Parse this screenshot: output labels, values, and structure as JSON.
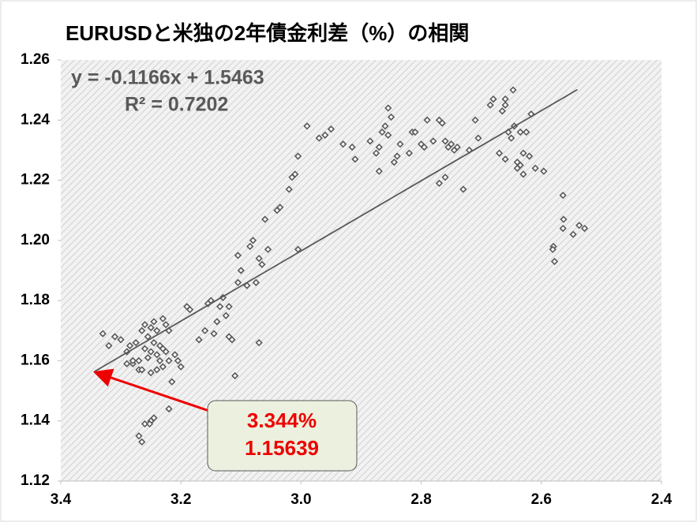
{
  "chart_data": {
    "type": "scatter",
    "title": "EURUSDと米独の2年債金利差（%）の相関",
    "x": [
      3.33,
      3.32,
      3.31,
      3.3,
      3.29,
      3.285,
      3.28,
      3.275,
      3.27,
      3.265,
      3.26,
      3.255,
      3.25,
      3.245,
      3.24,
      3.235,
      3.23,
      3.225,
      3.22,
      3.26,
      3.255,
      3.25,
      3.245,
      3.24,
      3.235,
      3.23,
      3.225,
      3.22,
      3.215,
      3.21,
      3.205,
      3.2,
      3.27,
      3.265,
      3.25,
      3.24,
      3.23,
      3.22,
      3.27,
      3.265,
      3.26,
      3.25,
      3.245,
      3.252,
      3.28,
      3.29,
      3.19,
      3.185,
      3.17,
      3.16,
      3.155,
      3.15,
      3.145,
      3.14,
      3.135,
      3.13,
      3.125,
      3.12,
      3.12,
      3.115,
      3.11,
      3.105,
      3.1,
      3.105,
      3.09,
      3.085,
      3.08,
      3.075,
      3.07,
      3.07,
      3.065,
      3.06,
      3.055,
      3.04,
      3.035,
      3.02,
      3.015,
      3.01,
      3.005,
      3.005,
      2.99,
      2.97,
      2.96,
      2.95,
      2.93,
      2.915,
      2.91,
      2.885,
      2.875,
      2.87,
      2.865,
      2.86,
      2.855,
      2.855,
      2.85,
      2.845,
      2.84,
      2.835,
      2.87,
      2.82,
      2.815,
      2.81,
      2.8,
      2.795,
      2.79,
      2.78,
      2.77,
      2.765,
      2.76,
      2.755,
      2.75,
      2.745,
      2.77,
      2.76,
      2.74,
      2.73,
      2.72,
      2.71,
      2.705,
      2.685,
      2.68,
      2.67,
      2.665,
      2.66,
      2.655,
      2.647,
      2.645,
      2.64,
      2.635,
      2.65,
      2.66,
      2.62,
      2.63,
      2.617,
      2.66,
      2.61,
      2.63,
      2.64,
      2.635,
      2.625,
      2.596,
      2.58,
      2.581,
      2.578,
      2.564,
      2.563,
      2.564,
      2.547,
      2.537,
      2.528
    ],
    "y": [
      1.169,
      1.165,
      1.168,
      1.167,
      1.163,
      1.165,
      1.159,
      1.166,
      1.16,
      1.17,
      1.172,
      1.168,
      1.171,
      1.173,
      1.17,
      1.165,
      1.174,
      1.172,
      1.17,
      1.164,
      1.161,
      1.163,
      1.166,
      1.162,
      1.16,
      1.158,
      1.163,
      1.16,
      1.153,
      1.162,
      1.16,
      1.158,
      1.157,
      1.157,
      1.156,
      1.157,
      1.164,
      1.144,
      1.135,
      1.133,
      1.139,
      1.14,
      1.141,
      1.139,
      1.16,
      1.159,
      1.178,
      1.177,
      1.167,
      1.17,
      1.179,
      1.18,
      1.169,
      1.173,
      1.178,
      1.181,
      1.175,
      1.178,
      1.168,
      1.167,
      1.155,
      1.186,
      1.19,
      1.195,
      1.185,
      1.198,
      1.2,
      1.186,
      1.166,
      1.194,
      1.192,
      1.207,
      1.197,
      1.21,
      1.211,
      1.217,
      1.221,
      1.222,
      1.228,
      1.197,
      1.238,
      1.234,
      1.235,
      1.237,
      1.232,
      1.231,
      1.227,
      1.233,
      1.229,
      1.231,
      1.236,
      1.238,
      1.244,
      1.235,
      1.241,
      1.226,
      1.228,
      1.232,
      1.223,
      1.229,
      1.236,
      1.236,
      1.232,
      1.231,
      1.24,
      1.233,
      1.24,
      1.239,
      1.233,
      1.231,
      1.232,
      1.23,
      1.219,
      1.221,
      1.231,
      1.217,
      1.23,
      1.24,
      1.234,
      1.245,
      1.247,
      1.229,
      1.243,
      1.245,
      1.236,
      1.25,
      1.238,
      1.226,
      1.225,
      1.234,
      1.247,
      1.228,
      1.229,
      1.242,
      1.227,
      1.224,
      1.222,
      1.224,
      1.236,
      1.236,
      1.223,
      1.198,
      1.197,
      1.193,
      1.215,
      1.207,
      1.204,
      1.202,
      1.205,
      1.204
    ],
    "color": "#595959",
    "xlim": [
      3.4,
      2.4
    ],
    "xticks": [
      3.4,
      3.2,
      {
        "value": 3,
        "label": "3.0"
      },
      2.8,
      2.6,
      2.4
    ],
    "ylim": [
      1.12,
      1.26
    ],
    "yticks": [
      1.12,
      1.14,
      1.16,
      1.18,
      {
        "value": 1.2,
        "label": "1.20"
      },
      1.22,
      1.24,
      1.26
    ],
    "trendline": {
      "slope": -0.1166,
      "intercept": 1.5463,
      "x_range": [
        3.344,
        2.54
      ],
      "equation": "y = -0.1166x + 1.5463",
      "r2": "R² = 0.7202"
    },
    "annotation": {
      "x": 3.344,
      "y": 1.15639,
      "x_label": "3.344%",
      "y_label": "1.15639"
    }
  }
}
